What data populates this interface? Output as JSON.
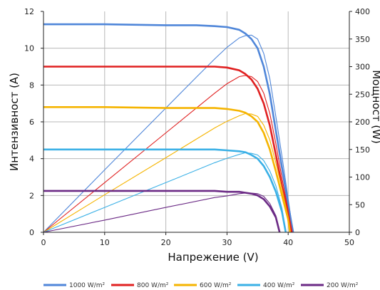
{
  "chart_data": {
    "type": "line",
    "xlabel": "Напрежение (V)",
    "ylabel": "Интензивност (A)",
    "ylabel_right": "Мощност (W)",
    "xlim": [
      0,
      50
    ],
    "ylim": [
      0,
      12
    ],
    "ylim_right": [
      0,
      400
    ],
    "x_ticks": [
      0,
      10,
      20,
      30,
      40,
      50
    ],
    "y_ticks": [
      0,
      2,
      4,
      6,
      8,
      10,
      12
    ],
    "y_ticks_right": [
      0,
      50,
      100,
      150,
      200,
      250,
      300,
      350,
      400
    ],
    "grid": true,
    "legend_position": "bottom",
    "series": [
      {
        "name": "1000 W/m²",
        "color": "#4f86d9",
        "current": [
          [
            0,
            11.3
          ],
          [
            10,
            11.3
          ],
          [
            20,
            11.25
          ],
          [
            25,
            11.25
          ],
          [
            28,
            11.2
          ],
          [
            30,
            11.15
          ],
          [
            32,
            11.0
          ],
          [
            33,
            10.8
          ],
          [
            34,
            10.5
          ],
          [
            35,
            10.0
          ],
          [
            36,
            9.0
          ],
          [
            37,
            7.5
          ],
          [
            38,
            5.5
          ],
          [
            39,
            3.5
          ],
          [
            40,
            1.5
          ],
          [
            40.8,
            0
          ]
        ],
        "power": [
          [
            0,
            0
          ],
          [
            10,
            113
          ],
          [
            20,
            225
          ],
          [
            25,
            281
          ],
          [
            28,
            314
          ],
          [
            30,
            335
          ],
          [
            32,
            352
          ],
          [
            33,
            356
          ],
          [
            34,
            357
          ],
          [
            35,
            350
          ],
          [
            36,
            324
          ],
          [
            37,
            278
          ],
          [
            38,
            209
          ],
          [
            39,
            137
          ],
          [
            40,
            60
          ],
          [
            40.8,
            0
          ]
        ]
      },
      {
        "name": "800 W/m²",
        "color": "#e02020",
        "current": [
          [
            0,
            9.0
          ],
          [
            10,
            9.0
          ],
          [
            20,
            9.0
          ],
          [
            28,
            9.0
          ],
          [
            30,
            8.95
          ],
          [
            32,
            8.8
          ],
          [
            33,
            8.6
          ],
          [
            34,
            8.3
          ],
          [
            35,
            7.8
          ],
          [
            36,
            7.0
          ],
          [
            37,
            5.8
          ],
          [
            38,
            4.2
          ],
          [
            39,
            2.5
          ],
          [
            40,
            1.0
          ],
          [
            40.6,
            0
          ]
        ],
        "power": [
          [
            0,
            0
          ],
          [
            10,
            90
          ],
          [
            20,
            180
          ],
          [
            28,
            252
          ],
          [
            30,
            269
          ],
          [
            32,
            282
          ],
          [
            33,
            284
          ],
          [
            34,
            282
          ],
          [
            35,
            273
          ],
          [
            36,
            252
          ],
          [
            37,
            215
          ],
          [
            38,
            160
          ],
          [
            39,
            98
          ],
          [
            40,
            40
          ],
          [
            40.6,
            0
          ]
        ]
      },
      {
        "name": "600 W/m²",
        "color": "#f5b400",
        "current": [
          [
            0,
            6.8
          ],
          [
            10,
            6.8
          ],
          [
            20,
            6.75
          ],
          [
            28,
            6.75
          ],
          [
            30,
            6.7
          ],
          [
            32,
            6.6
          ],
          [
            33,
            6.5
          ],
          [
            34,
            6.3
          ],
          [
            35,
            6.0
          ],
          [
            36,
            5.4
          ],
          [
            37,
            4.5
          ],
          [
            38,
            3.3
          ],
          [
            39,
            2.0
          ],
          [
            40,
            0.7
          ],
          [
            40.3,
            0
          ]
        ],
        "power": [
          [
            0,
            0
          ],
          [
            10,
            68
          ],
          [
            20,
            135
          ],
          [
            28,
            189
          ],
          [
            30,
            201
          ],
          [
            32,
            211
          ],
          [
            33,
            215
          ],
          [
            34,
            214
          ],
          [
            35,
            210
          ],
          [
            36,
            194
          ],
          [
            37,
            167
          ],
          [
            38,
            125
          ],
          [
            39,
            78
          ],
          [
            40,
            28
          ],
          [
            40.3,
            0
          ]
        ]
      },
      {
        "name": "400 W/m²",
        "color": "#3ab0e6",
        "current": [
          [
            0,
            4.5
          ],
          [
            10,
            4.5
          ],
          [
            20,
            4.5
          ],
          [
            28,
            4.5
          ],
          [
            30,
            4.45
          ],
          [
            32,
            4.4
          ],
          [
            33,
            4.35
          ],
          [
            34,
            4.2
          ],
          [
            35,
            4.0
          ],
          [
            36,
            3.6
          ],
          [
            37,
            3.0
          ],
          [
            38,
            2.2
          ],
          [
            39,
            1.1
          ],
          [
            39.6,
            0
          ]
        ],
        "power": [
          [
            0,
            0
          ],
          [
            10,
            45
          ],
          [
            20,
            90
          ],
          [
            28,
            126
          ],
          [
            30,
            134
          ],
          [
            32,
            141
          ],
          [
            33,
            144
          ],
          [
            34,
            143
          ],
          [
            35,
            140
          ],
          [
            36,
            130
          ],
          [
            37,
            111
          ],
          [
            38,
            84
          ],
          [
            39,
            43
          ],
          [
            39.6,
            0
          ]
        ]
      },
      {
        "name": "200 W/m²",
        "color": "#6b2a85",
        "current": [
          [
            0,
            2.25
          ],
          [
            10,
            2.25
          ],
          [
            20,
            2.25
          ],
          [
            28,
            2.25
          ],
          [
            30,
            2.2
          ],
          [
            32,
            2.2
          ],
          [
            33,
            2.15
          ],
          [
            34,
            2.1
          ],
          [
            35,
            2.0
          ],
          [
            36,
            1.8
          ],
          [
            37,
            1.4
          ],
          [
            38,
            0.8
          ],
          [
            38.6,
            0
          ]
        ],
        "power": [
          [
            0,
            0
          ],
          [
            10,
            22
          ],
          [
            20,
            45
          ],
          [
            28,
            63
          ],
          [
            30,
            66
          ],
          [
            32,
            70
          ],
          [
            33,
            71
          ],
          [
            34,
            71
          ],
          [
            35,
            70
          ],
          [
            36,
            65
          ],
          [
            37,
            52
          ],
          [
            38,
            30
          ],
          [
            38.6,
            0
          ]
        ]
      }
    ]
  }
}
